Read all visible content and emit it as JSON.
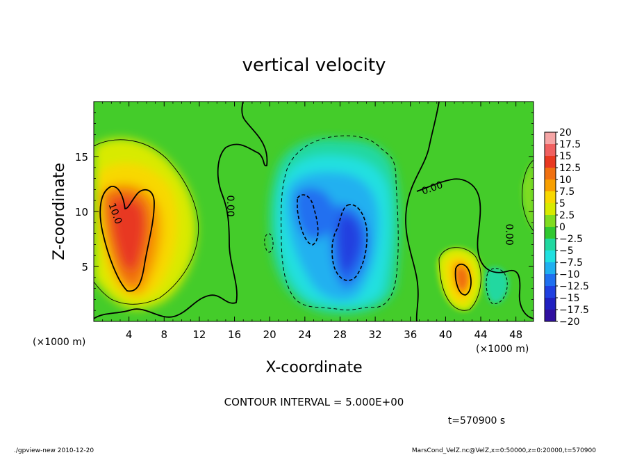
{
  "chart_data": {
    "type": "heatmap",
    "title": "vertical velocity",
    "xlabel": "X-coordinate",
    "ylabel": "Z-coordinate",
    "x_unit_left": "(×1000 m)",
    "x_unit_right": "(×1000 m)",
    "xlim": [
      0,
      50
    ],
    "ylim": [
      0,
      20
    ],
    "x_ticks": [
      4,
      8,
      12,
      16,
      20,
      24,
      28,
      32,
      36,
      40,
      44,
      48
    ],
    "y_ticks": [
      5,
      10,
      15
    ],
    "colorbar": {
      "levels": [
        "20",
        "17.5",
        "15",
        "12.5",
        "10",
        "7.5",
        "5",
        "2.5",
        "0",
        "−2.5",
        "−5",
        "−7.5",
        "−10",
        "−12.5",
        "−15",
        "−17.5",
        "−20"
      ],
      "colors": [
        "#f5a5a5",
        "#f06060",
        "#e83820",
        "#f07010",
        "#f8a000",
        "#f8d800",
        "#d8ea00",
        "#80dc20",
        "#30c830",
        "#20d8a0",
        "#20e0e0",
        "#20b0f0",
        "#2070f0",
        "#2040e0",
        "#2020c0",
        "#3010a0",
        "#6010b0"
      ]
    },
    "contour_labels": [
      {
        "text": "10.0",
        "x": 2.4,
        "y": 9.8,
        "rotate": 70
      },
      {
        "text": "0.00",
        "x": 15.5,
        "y": 10.5,
        "rotate": 90
      },
      {
        "text": "0.00",
        "x": 38.5,
        "y": 12.1,
        "rotate": -20
      },
      {
        "text": "0.00",
        "x": 47.2,
        "y": 7.9,
        "rotate": 90
      }
    ],
    "features": [
      {
        "name": "updraft-west",
        "sign": "positive",
        "peak": 12.5,
        "x": 4.5,
        "z": 8.5
      },
      {
        "name": "downdraft-center",
        "sign": "negative",
        "peak": -12.5,
        "x": 29,
        "z": 7
      },
      {
        "name": "updraft-east",
        "sign": "positive",
        "peak": 10,
        "x": 42,
        "z": 4
      }
    ],
    "contour_interval_text": "CONTOUR INTERVAL = 5.000E+00",
    "time_text": "t=570900 s"
  },
  "footer": {
    "left": "./gpview-new  2010-12-20",
    "right": "MarsCond_VelZ.nc@VelZ,x=0:50000,z=0:20000,t=570900"
  }
}
